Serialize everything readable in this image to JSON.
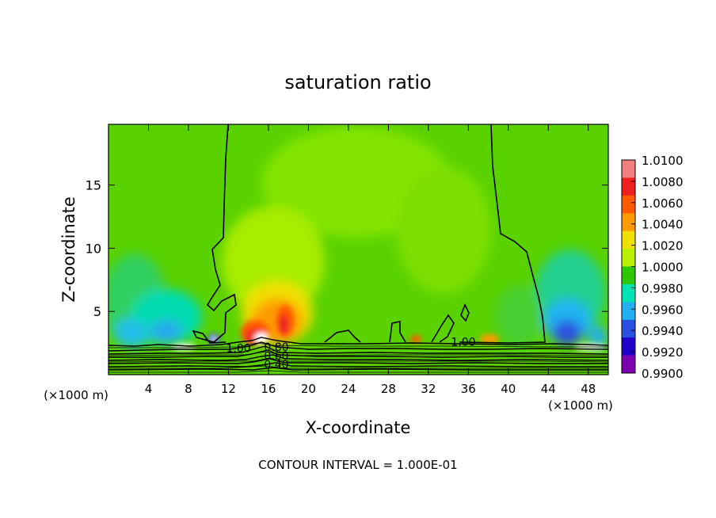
{
  "chart_data": {
    "type": "heatmap",
    "title": "saturation ratio",
    "xlabel": "X-coordinate",
    "ylabel": "Z-coordinate",
    "x_unit_left": "(×1000 m)",
    "x_unit_right": "(×1000 m)",
    "footer": "CONTOUR INTERVAL = 1.000E-01",
    "xlim": [
      0,
      50
    ],
    "ylim": [
      0,
      19.8
    ],
    "x_ticks": [
      4,
      8,
      12,
      16,
      20,
      24,
      28,
      32,
      36,
      40,
      44,
      48
    ],
    "y_ticks": [
      5,
      10,
      15
    ],
    "colorbar": {
      "labels": [
        "1.0100",
        "1.0080",
        "1.0060",
        "1.0040",
        "1.0020",
        "1.0000",
        "0.9980",
        "0.9960",
        "0.9940",
        "0.9920",
        "0.9900"
      ],
      "colors": [
        "#f08080",
        "#ee2020",
        "#ff5a00",
        "#ff9a00",
        "#f0e000",
        "#b8f000",
        "#2ec800",
        "#00e4b4",
        "#22b0f0",
        "#2a50e0",
        "#1e00c8",
        "#7a00b0"
      ]
    },
    "contour_labels": [
      "1.00",
      "0.80",
      "0.60",
      "0.40",
      "1.00"
    ],
    "contour_label_x": [
      13,
      16.8,
      16.8,
      16.8,
      35.5
    ],
    "contour_label_z": [
      2.1,
      2.2,
      1.5,
      0.8,
      2.6
    ]
  }
}
